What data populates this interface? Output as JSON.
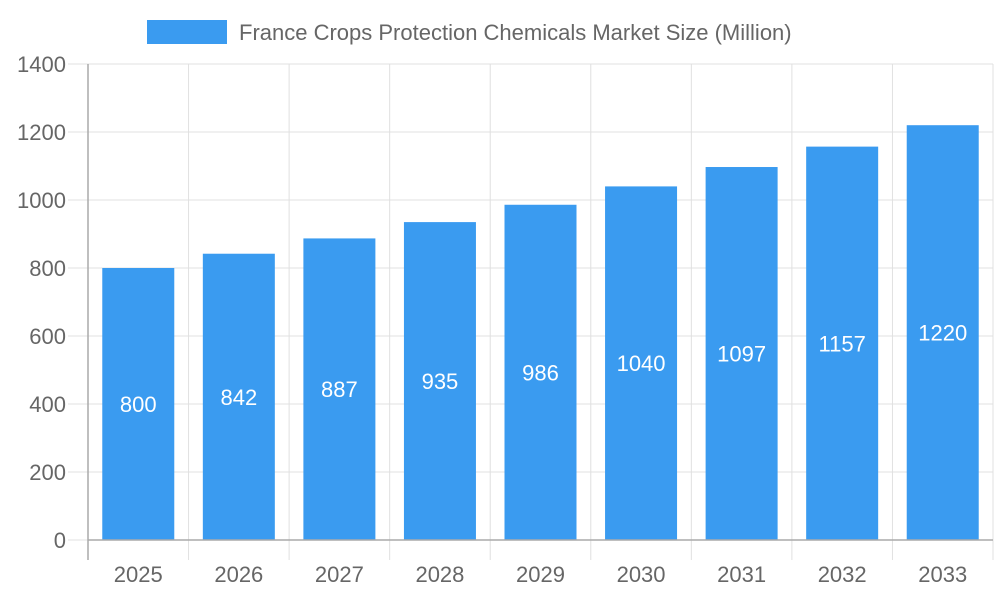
{
  "chart_data": {
    "type": "bar",
    "title": "",
    "xlabel": "",
    "ylabel": "",
    "categories": [
      "2025",
      "2026",
      "2027",
      "2028",
      "2029",
      "2030",
      "2031",
      "2032",
      "2033"
    ],
    "series": [
      {
        "name": "France Crops Protection Chemicals Market Size (Million)",
        "values": [
          800,
          842,
          887,
          935,
          986,
          1040,
          1097,
          1157,
          1220
        ]
      }
    ],
    "ylim": [
      0,
      1400
    ],
    "yticks": [
      0,
      200,
      400,
      600,
      800,
      1000,
      1200,
      1400
    ],
    "grid": true,
    "legend": "top-center",
    "data_labels": "inside-center",
    "colors": {
      "bar": "#3a9bf0",
      "grid": "#e0e0e0",
      "axis": "#aaaaaa",
      "text": "#666666",
      "label": "#ffffff"
    }
  }
}
